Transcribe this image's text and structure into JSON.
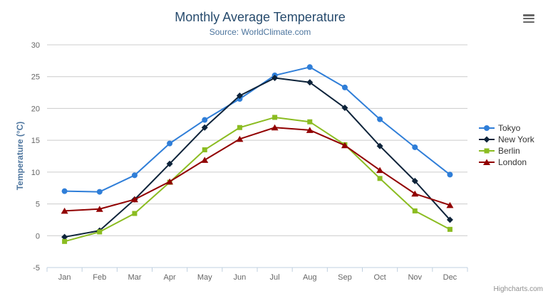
{
  "chart_data": {
    "type": "line",
    "title": "Monthly Average Temperature",
    "subtitle": "Source: WorldClimate.com",
    "ylabel": "Temperature (°C)",
    "xlabel": "",
    "categories": [
      "Jan",
      "Feb",
      "Mar",
      "Apr",
      "May",
      "Jun",
      "Jul",
      "Aug",
      "Sep",
      "Oct",
      "Nov",
      "Dec"
    ],
    "ylim": [
      -5,
      30
    ],
    "yticks": [
      -5,
      0,
      5,
      10,
      15,
      20,
      25,
      30
    ],
    "grid": true,
    "legend_position": "right",
    "series": [
      {
        "name": "Tokyo",
        "color": "#2f7ed8",
        "marker": "circle",
        "values": [
          7.0,
          6.9,
          9.5,
          14.5,
          18.2,
          21.5,
          25.2,
          26.5,
          23.3,
          18.3,
          13.9,
          9.6
        ]
      },
      {
        "name": "New York",
        "color": "#0d233a",
        "marker": "diamond",
        "values": [
          -0.2,
          0.8,
          5.7,
          11.3,
          17.0,
          22.0,
          24.8,
          24.1,
          20.1,
          14.1,
          8.6,
          2.5
        ]
      },
      {
        "name": "Berlin",
        "color": "#8bbc21",
        "marker": "square",
        "values": [
          -0.9,
          0.6,
          3.5,
          8.4,
          13.5,
          17.0,
          18.6,
          17.9,
          14.3,
          9.0,
          3.9,
          1.0
        ]
      },
      {
        "name": "London",
        "color": "#910000",
        "marker": "triangle",
        "values": [
          3.9,
          4.2,
          5.7,
          8.5,
          11.9,
          15.2,
          17.0,
          16.6,
          14.2,
          10.3,
          6.6,
          4.8
        ]
      }
    ],
    "style": {
      "grid_color": "#cccccc",
      "axis_line_color": "#c0d0e0",
      "tick_label_color": "#666666",
      "title_color": "#274b6d",
      "subtitle_color": "#4d759e",
      "legend_text_color": "#333333"
    }
  },
  "export_menu": {
    "icon": "hamburger-icon"
  },
  "credits": {
    "label": "Highcharts.com"
  }
}
